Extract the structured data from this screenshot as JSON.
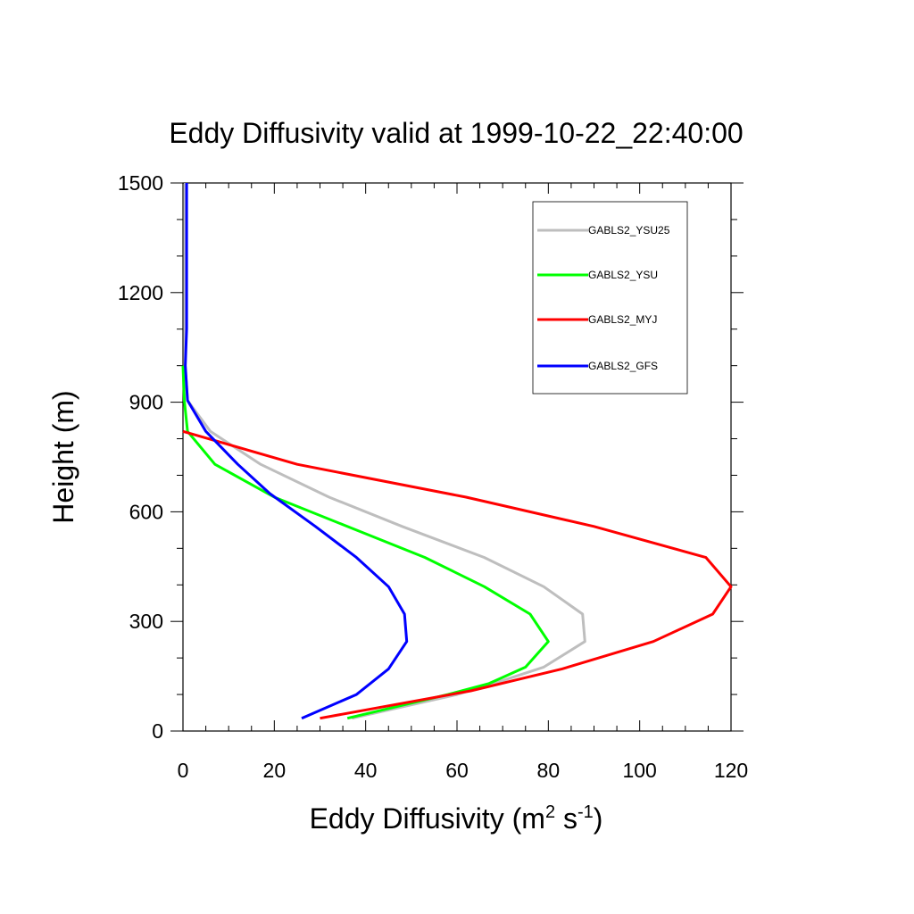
{
  "chart_data": {
    "type": "line",
    "title": "Eddy Diffusivity valid at 1999-10-22_22:40:00",
    "xlabel": "Eddy Diffusivity (m",
    "xlabel_sup1": "2",
    "xlabel_mid": " s",
    "xlabel_sup2": "-1",
    "xlabel_end": ")",
    "ylabel": "Height (m)",
    "xlim": [
      0,
      120
    ],
    "ylim": [
      0,
      1500
    ],
    "x_ticks": [
      0,
      20,
      40,
      60,
      80,
      100,
      120
    ],
    "y_ticks": [
      0,
      300,
      600,
      900,
      1200,
      1500
    ],
    "x_tick_labels": [
      "0",
      "20",
      "40",
      "60",
      "80",
      "100",
      "120"
    ],
    "y_tick_labels": [
      "0",
      "300",
      "600",
      "900",
      "1200",
      "1500"
    ],
    "grid": false,
    "legend_position": "top-right",
    "series": [
      {
        "name": "GABLS2_YSU25",
        "color": "#bebebe",
        "points": [
          [
            37,
            35
          ],
          [
            60,
            100
          ],
          [
            68,
            130
          ],
          [
            79,
            175
          ],
          [
            88,
            245
          ],
          [
            87.5,
            320
          ],
          [
            79,
            395
          ],
          [
            66,
            475
          ],
          [
            48,
            560
          ],
          [
            32,
            640
          ],
          [
            17,
            730
          ],
          [
            6,
            820
          ],
          [
            1,
            905
          ],
          [
            0.5,
            1000
          ],
          [
            0.5,
            1100
          ],
          [
            0.5,
            1200
          ],
          [
            0.5,
            1300
          ],
          [
            0.5,
            1400
          ],
          [
            0.5,
            1500
          ]
        ]
      },
      {
        "name": "GABLS2_YSU",
        "color": "#00ff00",
        "points": [
          [
            36,
            35
          ],
          [
            58,
            100
          ],
          [
            67,
            130
          ],
          [
            75,
            175
          ],
          [
            80,
            245
          ],
          [
            76,
            320
          ],
          [
            66,
            395
          ],
          [
            53,
            475
          ],
          [
            38,
            550
          ],
          [
            20,
            640
          ],
          [
            7,
            730
          ],
          [
            1,
            820
          ],
          [
            0.3,
            905
          ],
          [
            0,
            1000
          ]
        ]
      },
      {
        "name": "GABLS2_MYJ",
        "color": "#ff0000",
        "points": [
          [
            30,
            35
          ],
          [
            63,
            110
          ],
          [
            83,
            170
          ],
          [
            103,
            245
          ],
          [
            116,
            320
          ],
          [
            120,
            395
          ],
          [
            114.5,
            475
          ],
          [
            90,
            560
          ],
          [
            62,
            640
          ],
          [
            25,
            730
          ],
          [
            0,
            820
          ]
        ]
      },
      {
        "name": "GABLS2_GFS",
        "color": "#0000ff",
        "points": [
          [
            26,
            35
          ],
          [
            38,
            100
          ],
          [
            45,
            170
          ],
          [
            49,
            245
          ],
          [
            48.5,
            320
          ],
          [
            45,
            395
          ],
          [
            38,
            475
          ],
          [
            29,
            560
          ],
          [
            19,
            650
          ],
          [
            12,
            730
          ],
          [
            5,
            820
          ],
          [
            1,
            905
          ],
          [
            0.5,
            1000
          ],
          [
            0.8,
            1100
          ],
          [
            0.8,
            1200
          ],
          [
            0.8,
            1300
          ],
          [
            0.8,
            1400
          ],
          [
            0.8,
            1500
          ]
        ]
      }
    ]
  }
}
